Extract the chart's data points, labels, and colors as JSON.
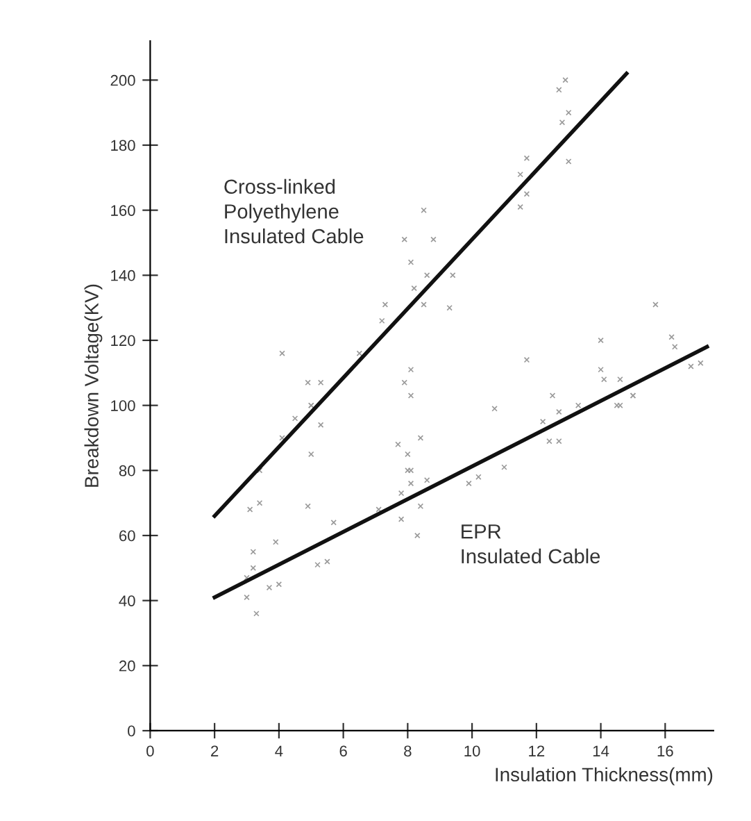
{
  "chart_data": {
    "type": "line",
    "xlabel": "Insulation Thickness(mm)",
    "ylabel": "Breakdown Voltage(KV)",
    "xlim": [
      0,
      17.5
    ],
    "ylim": [
      0,
      212
    ],
    "xticks": [
      0,
      2,
      4,
      6,
      8,
      10,
      12,
      14,
      16
    ],
    "yticks": [
      0,
      20,
      40,
      60,
      80,
      100,
      120,
      140,
      160,
      180,
      200
    ],
    "grid": false,
    "legend": false,
    "annotations": [
      "Cross-linked\nPolyethylene\nInsulated Cable",
      "EPR\nInsulated Cable"
    ],
    "series": [
      {
        "type": "scatter",
        "color": "#9a9a9a",
        "marker": "cross",
        "x": [
          12.9,
          12.7,
          13.0,
          12.8,
          13.0,
          11.7,
          11.5,
          11.7,
          11.5,
          8.5,
          7.9,
          8.8,
          8.1,
          8.6,
          9.4,
          8.2,
          7.3,
          8.5,
          9.3,
          7.2,
          6.5,
          4.1,
          8.1,
          7.9,
          8.1,
          4.9,
          5.3,
          5.0,
          15.7,
          14.0,
          16.2,
          16.3,
          11.7,
          14.0,
          14.1,
          14.6,
          16.8,
          17.1,
          15.0,
          14.5,
          10.7,
          12.5,
          13.3,
          12.2,
          12.7,
          12.4,
          12.7,
          14.6,
          15.0,
          11.0,
          9.9,
          10.2,
          8.4,
          7.7,
          8.0,
          8.1,
          5.3,
          4.5,
          5.0,
          5.0,
          4.1,
          8.0,
          8.6,
          8.1,
          7.8,
          8.4,
          7.8,
          7.1,
          8.3,
          4.9,
          5.7,
          3.4,
          3.1,
          3.9,
          3.2,
          3.2,
          3.0,
          3.7,
          4.0,
          3.0,
          3.3,
          5.2,
          5.5,
          3.4
        ],
        "values": [
          200,
          197,
          190,
          187,
          175,
          176,
          171,
          165,
          161,
          160,
          151,
          151,
          144,
          140,
          140,
          136,
          131,
          131,
          130,
          126,
          116,
          116,
          111,
          107,
          103,
          107,
          107,
          100,
          131,
          120,
          121,
          118,
          114,
          111,
          108,
          108,
          112,
          113,
          103,
          100,
          99,
          103,
          100,
          95,
          98,
          89,
          89,
          100,
          103,
          81,
          76,
          78,
          90,
          88,
          85,
          80,
          94,
          96,
          100,
          85,
          90,
          80,
          77,
          76,
          73,
          69,
          65,
          68,
          60,
          69,
          64,
          70,
          68,
          58,
          55,
          50,
          47,
          44,
          45,
          41,
          36,
          51,
          52,
          80
        ]
      },
      {
        "color": "#111111",
        "line_style": "solid",
        "marker": "none",
        "x": [
          2,
          14.8
        ],
        "values": [
          66,
          202
        ]
      },
      {
        "color": "#111111",
        "line_style": "solid",
        "marker": "none",
        "x": [
          2,
          17.3
        ],
        "values": [
          41,
          118
        ]
      }
    ]
  }
}
